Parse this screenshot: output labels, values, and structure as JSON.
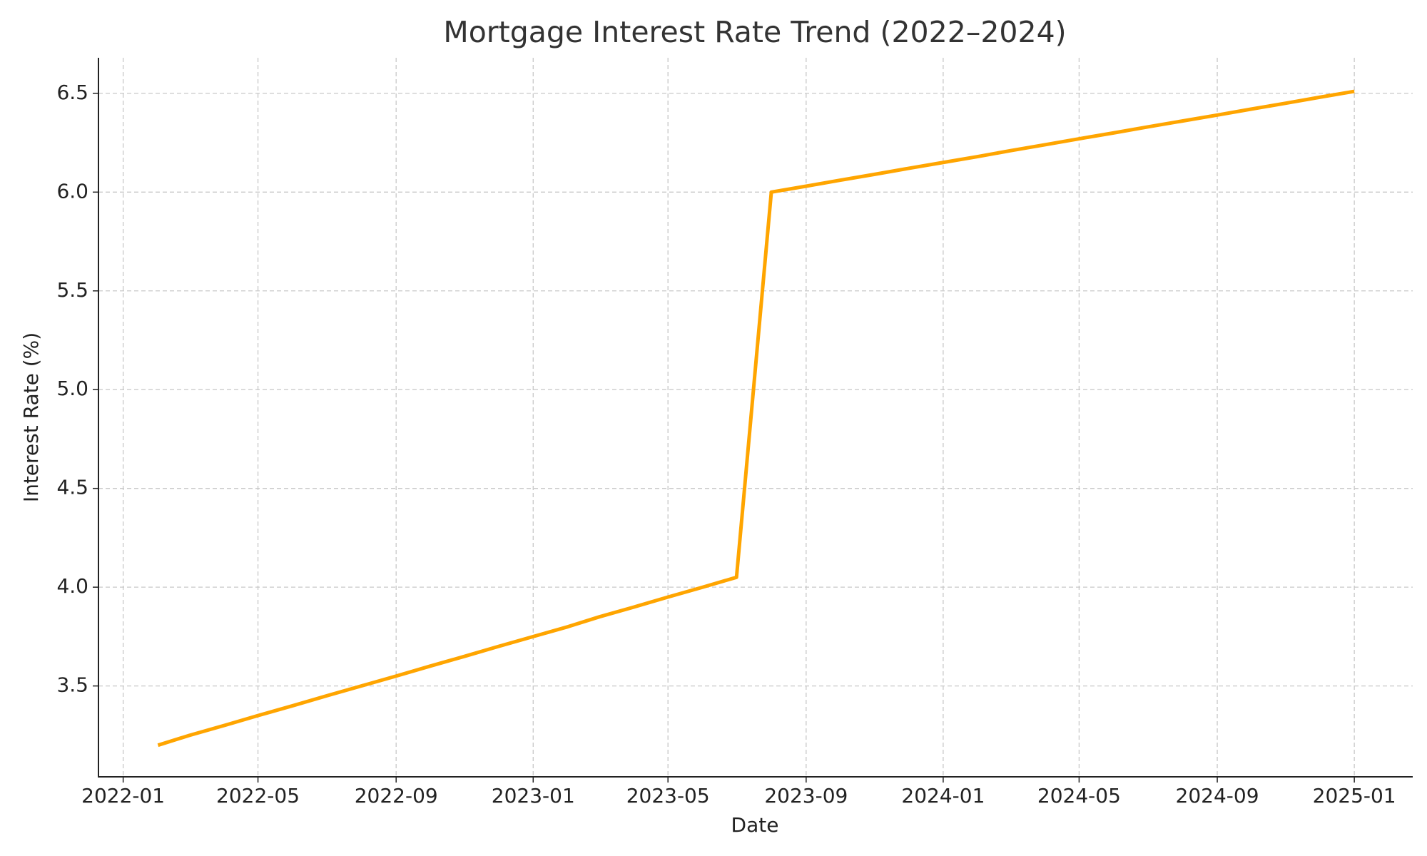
{
  "chart_data": {
    "type": "line",
    "title": "Mortgage Interest Rate Trend (2022–2024)",
    "x_label": "Date",
    "y_label": "Interest Rate (%)",
    "x": [
      "2022-02",
      "2022-03",
      "2022-04",
      "2022-05",
      "2022-06",
      "2022-07",
      "2022-08",
      "2022-09",
      "2022-10",
      "2022-11",
      "2022-12",
      "2023-01",
      "2023-02",
      "2023-03",
      "2023-04",
      "2023-05",
      "2023-06",
      "2023-07",
      "2023-08",
      "2023-09",
      "2023-10",
      "2023-11",
      "2023-12",
      "2024-01",
      "2024-02",
      "2024-03",
      "2024-04",
      "2024-05",
      "2024-06",
      "2024-07",
      "2024-08",
      "2024-09",
      "2024-10",
      "2024-11",
      "2024-12",
      "2025-01"
    ],
    "series": [
      {
        "color": "#ffa500",
        "values": [
          3.2,
          3.25,
          3.3,
          3.35,
          3.4,
          3.45,
          3.5,
          3.55,
          3.6,
          3.65,
          3.7,
          3.75,
          3.8,
          3.85,
          3.9,
          3.95,
          4.0,
          4.05,
          6.0,
          6.03,
          6.06,
          6.09,
          6.12,
          6.15,
          6.18,
          6.21,
          6.24,
          6.27,
          6.3,
          6.33,
          6.36,
          6.39,
          6.42,
          6.45,
          6.48,
          6.51
        ]
      }
    ],
    "xlim": [
      "2021-12-10",
      "2025-02-22"
    ],
    "xticks": [
      "2022-01",
      "2022-05",
      "2022-09",
      "2023-01",
      "2023-05",
      "2023-09",
      "2024-01",
      "2024-05",
      "2024-09",
      "2025-01"
    ],
    "ylim": [
      3.04,
      6.68
    ],
    "yticks": [
      3.5,
      {
        "value": 4,
        "label": "4.0"
      },
      4.5,
      {
        "value": 5,
        "label": "5.0"
      },
      5.5,
      {
        "value": 6,
        "label": "6.0"
      },
      6.5
    ],
    "grid": true
  }
}
